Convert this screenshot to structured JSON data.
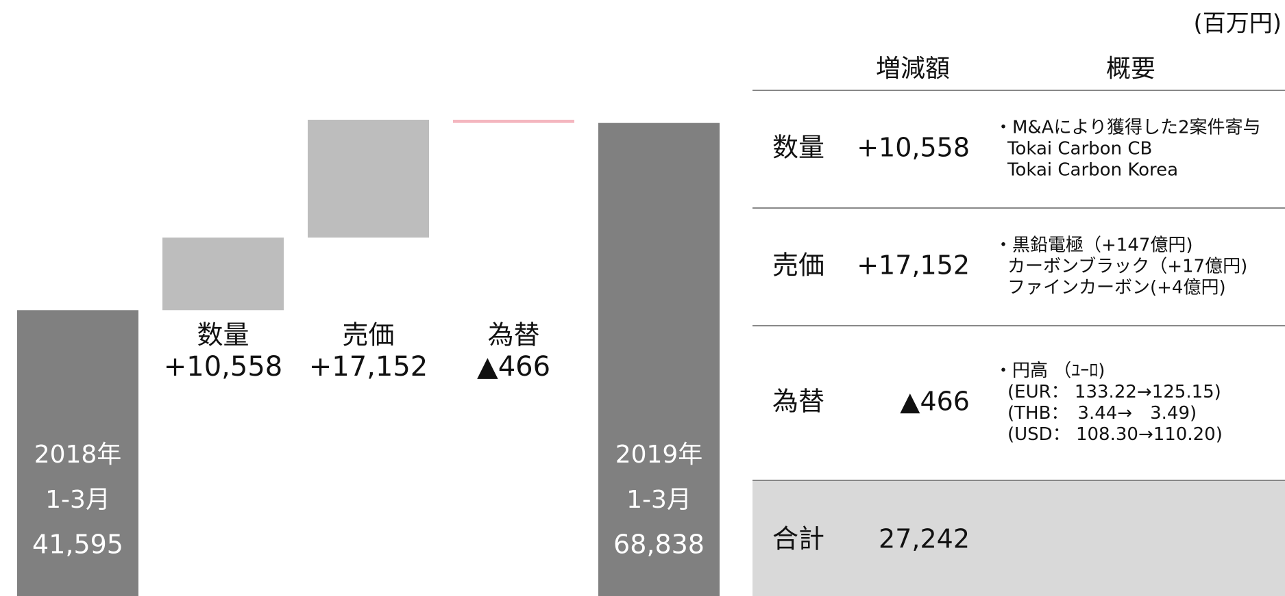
{
  "chart_data": {
    "type": "waterfall",
    "category_lines": [
      [
        "2018年",
        "1-3月"
      ],
      [
        "数量"
      ],
      [
        "売価"
      ],
      [
        "為替"
      ],
      [
        "2019年",
        "1-3月"
      ]
    ],
    "values": [
      41595,
      10558,
      17152,
      -466,
      68838
    ],
    "value_labels": [
      "41,595",
      "+10,558",
      "+17,152",
      "▲466",
      "68,838"
    ],
    "total_color": "#808080",
    "increase_color": "#bdbdbd",
    "decrease_color": "#f4b6bf"
  },
  "table": {
    "unit": "(百万円)",
    "header": [
      "増減額",
      "概要"
    ],
    "rows": [
      {
        "label": "数量",
        "amount": "+10,558",
        "details": [
          "・M&Aにより獲得した2案件寄与",
          "Tokai Carbon CB",
          "Tokai Carbon Korea"
        ]
      },
      {
        "label": "売価",
        "amount": "+17,152",
        "details": [
          "・黒鉛電極（+147億円)",
          "カーボンブラック（+17億円)",
          "ファインカーボン(+4億円)"
        ]
      },
      {
        "label": "為替",
        "amount": "▲466",
        "details": [
          "・円高 （ﾕｰﾛ)",
          "(EUR： 133.22→125.15)",
          "(THB：　3.44→　3.49)",
          "(USD： 108.30→110.20)"
        ]
      }
    ],
    "total": {
      "label": "合計",
      "amount": "27,242"
    }
  }
}
